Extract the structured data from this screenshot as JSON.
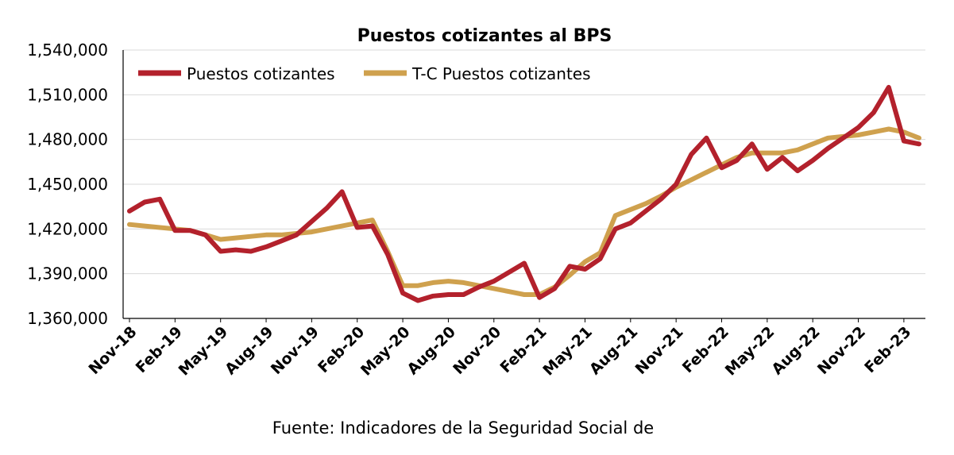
{
  "chart_data": {
    "type": "line",
    "title": "Puestos cotizantes al BPS",
    "source": "Fuente: Indicadores de la Seguridad Social de",
    "xlabel": "",
    "ylabel": "",
    "ylim": [
      1360000,
      1540000
    ],
    "yticks": [
      1360000,
      1390000,
      1420000,
      1450000,
      1480000,
      1510000,
      1540000
    ],
    "ytick_labels": [
      "1,360,000",
      "1,390,000",
      "1,420,000",
      "1,450,000",
      "1,480,000",
      "1,510,000",
      "1,540,000"
    ],
    "grid": true,
    "legend_position": "top-left",
    "x": [
      "Nov-18",
      "Dec-18",
      "Jan-19",
      "Feb-19",
      "Mar-19",
      "Apr-19",
      "May-19",
      "Jun-19",
      "Jul-19",
      "Aug-19",
      "Sep-19",
      "Oct-19",
      "Nov-19",
      "Dec-19",
      "Jan-20",
      "Feb-20",
      "Mar-20",
      "Apr-20",
      "May-20",
      "Jun-20",
      "Jul-20",
      "Aug-20",
      "Sep-20",
      "Oct-20",
      "Nov-20",
      "Dec-20",
      "Jan-21",
      "Feb-21",
      "Mar-21",
      "Apr-21",
      "May-21",
      "Jun-21",
      "Jul-21",
      "Aug-21",
      "Sep-21",
      "Oct-21",
      "Nov-21",
      "Dec-21",
      "Jan-22",
      "Feb-22",
      "Mar-22",
      "Apr-22",
      "May-22",
      "Jun-22",
      "Jul-22",
      "Aug-22",
      "Sep-22",
      "Oct-22",
      "Nov-22",
      "Dec-22",
      "Jan-23",
      "Feb-23",
      "Mar-23"
    ],
    "xtick_labels": [
      "Nov-18",
      "Feb-19",
      "May-19",
      "Aug-19",
      "Nov-19",
      "Feb-20",
      "May-20",
      "Aug-20",
      "Nov-20",
      "Feb-21",
      "May-21",
      "Aug-21",
      "Nov-21",
      "Feb-22",
      "May-22",
      "Aug-22",
      "Nov-22",
      "Feb-23"
    ],
    "series": [
      {
        "name": "Puestos cotizantes",
        "color": "#B3212C",
        "values": [
          1432000,
          1438000,
          1440000,
          1419000,
          1419000,
          1416000,
          1405000,
          1406000,
          1405000,
          1408000,
          1412000,
          1416000,
          1425000,
          1434000,
          1445000,
          1421000,
          1422000,
          1403000,
          1377000,
          1372000,
          1375000,
          1376000,
          1376000,
          1381000,
          1385000,
          1391000,
          1397000,
          1374000,
          1380000,
          1395000,
          1393000,
          1400000,
          1420000,
          1424000,
          1432000,
          1440000,
          1450000,
          1470000,
          1481000,
          1461000,
          1466000,
          1477000,
          1460000,
          1468000,
          1459000,
          1466000,
          1474000,
          1481000,
          1488000,
          1498000,
          1515000,
          1479000,
          1477000
        ]
      },
      {
        "name": "T-C Puestos cotizantes",
        "color": "#CFA14E",
        "values": [
          1423000,
          1422000,
          1421000,
          1420000,
          1419000,
          1416000,
          1413000,
          1414000,
          1415000,
          1416000,
          1416000,
          1417000,
          1418000,
          1420000,
          1422000,
          1424000,
          1426000,
          1405000,
          1382000,
          1382000,
          1384000,
          1385000,
          1384000,
          1382000,
          1380000,
          1378000,
          1376000,
          1376000,
          1381000,
          1389000,
          1398000,
          1404000,
          1429000,
          1433000,
          1437000,
          1442000,
          1448000,
          1453000,
          1458000,
          1463000,
          1468000,
          1471000,
          1471000,
          1471000,
          1473000,
          1477000,
          1481000,
          1482000,
          1483000,
          1485000,
          1487000,
          1485000,
          1481000
        ]
      }
    ]
  }
}
